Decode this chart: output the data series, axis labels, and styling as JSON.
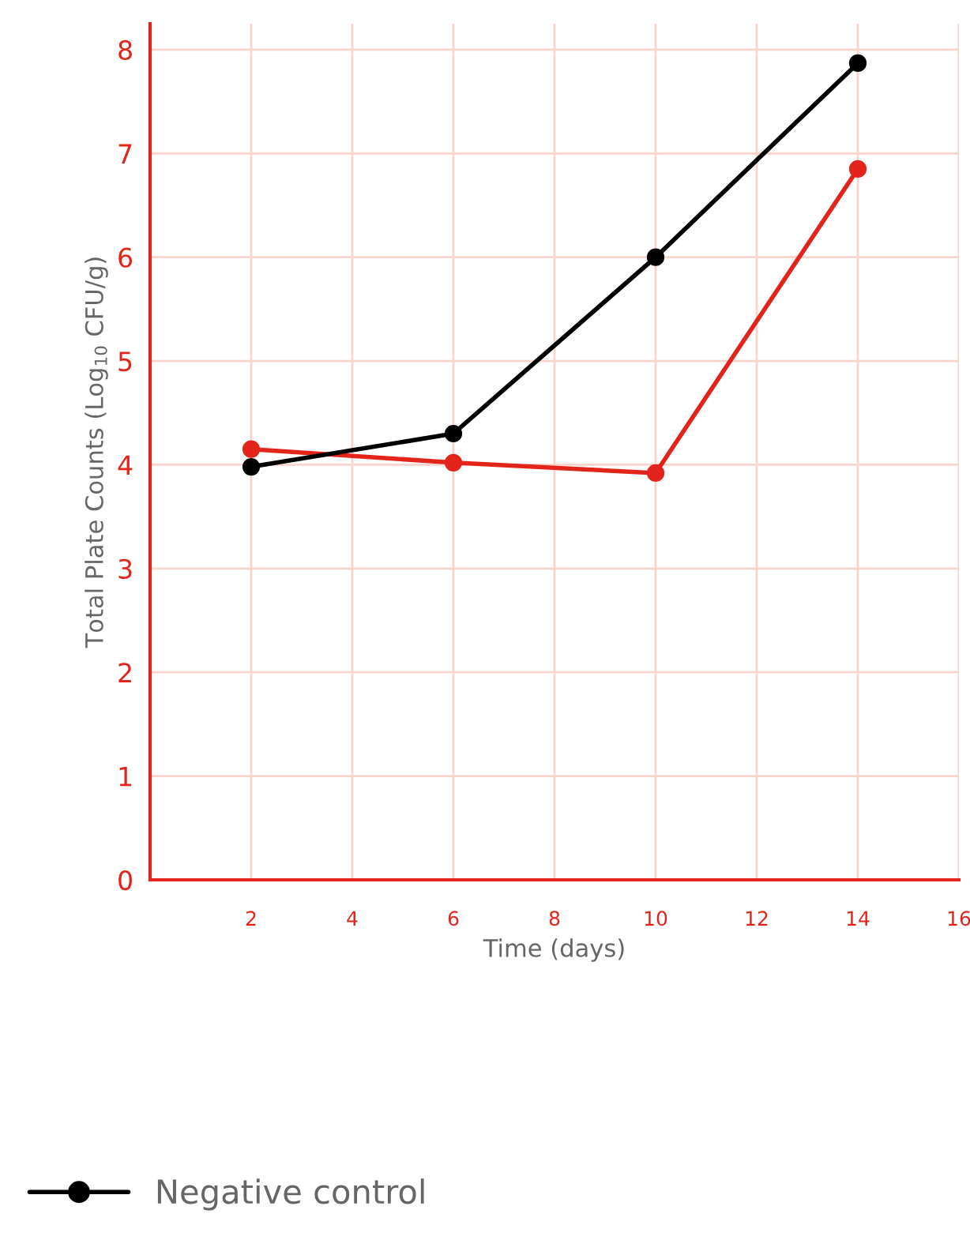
{
  "chart_data": {
    "type": "line",
    "xlabel": "Time (days)",
    "ylabel": "Total Plate Counts (Log$_{10}$ CFU/g)",
    "x": [
      2,
      6,
      10,
      14
    ],
    "series": [
      {
        "color": "#e3241b",
        "values": [
          4.15,
          4.02,
          3.92,
          6.85
        ]
      },
      {
        "name": "Negative control",
        "color": "#000000",
        "values": [
          3.98,
          4.3,
          6.0,
          7.87
        ]
      }
    ],
    "xlim": [
      0,
      16
    ],
    "xticks": [
      2,
      4,
      6,
      8,
      10,
      12,
      14,
      16
    ],
    "ylim": [
      0,
      8.25
    ],
    "yticks": [
      0,
      1,
      2,
      3,
      4,
      5,
      6,
      7,
      8
    ],
    "grid": true,
    "legend": "bottom",
    "marker": "circle",
    "line_style": "solid"
  }
}
